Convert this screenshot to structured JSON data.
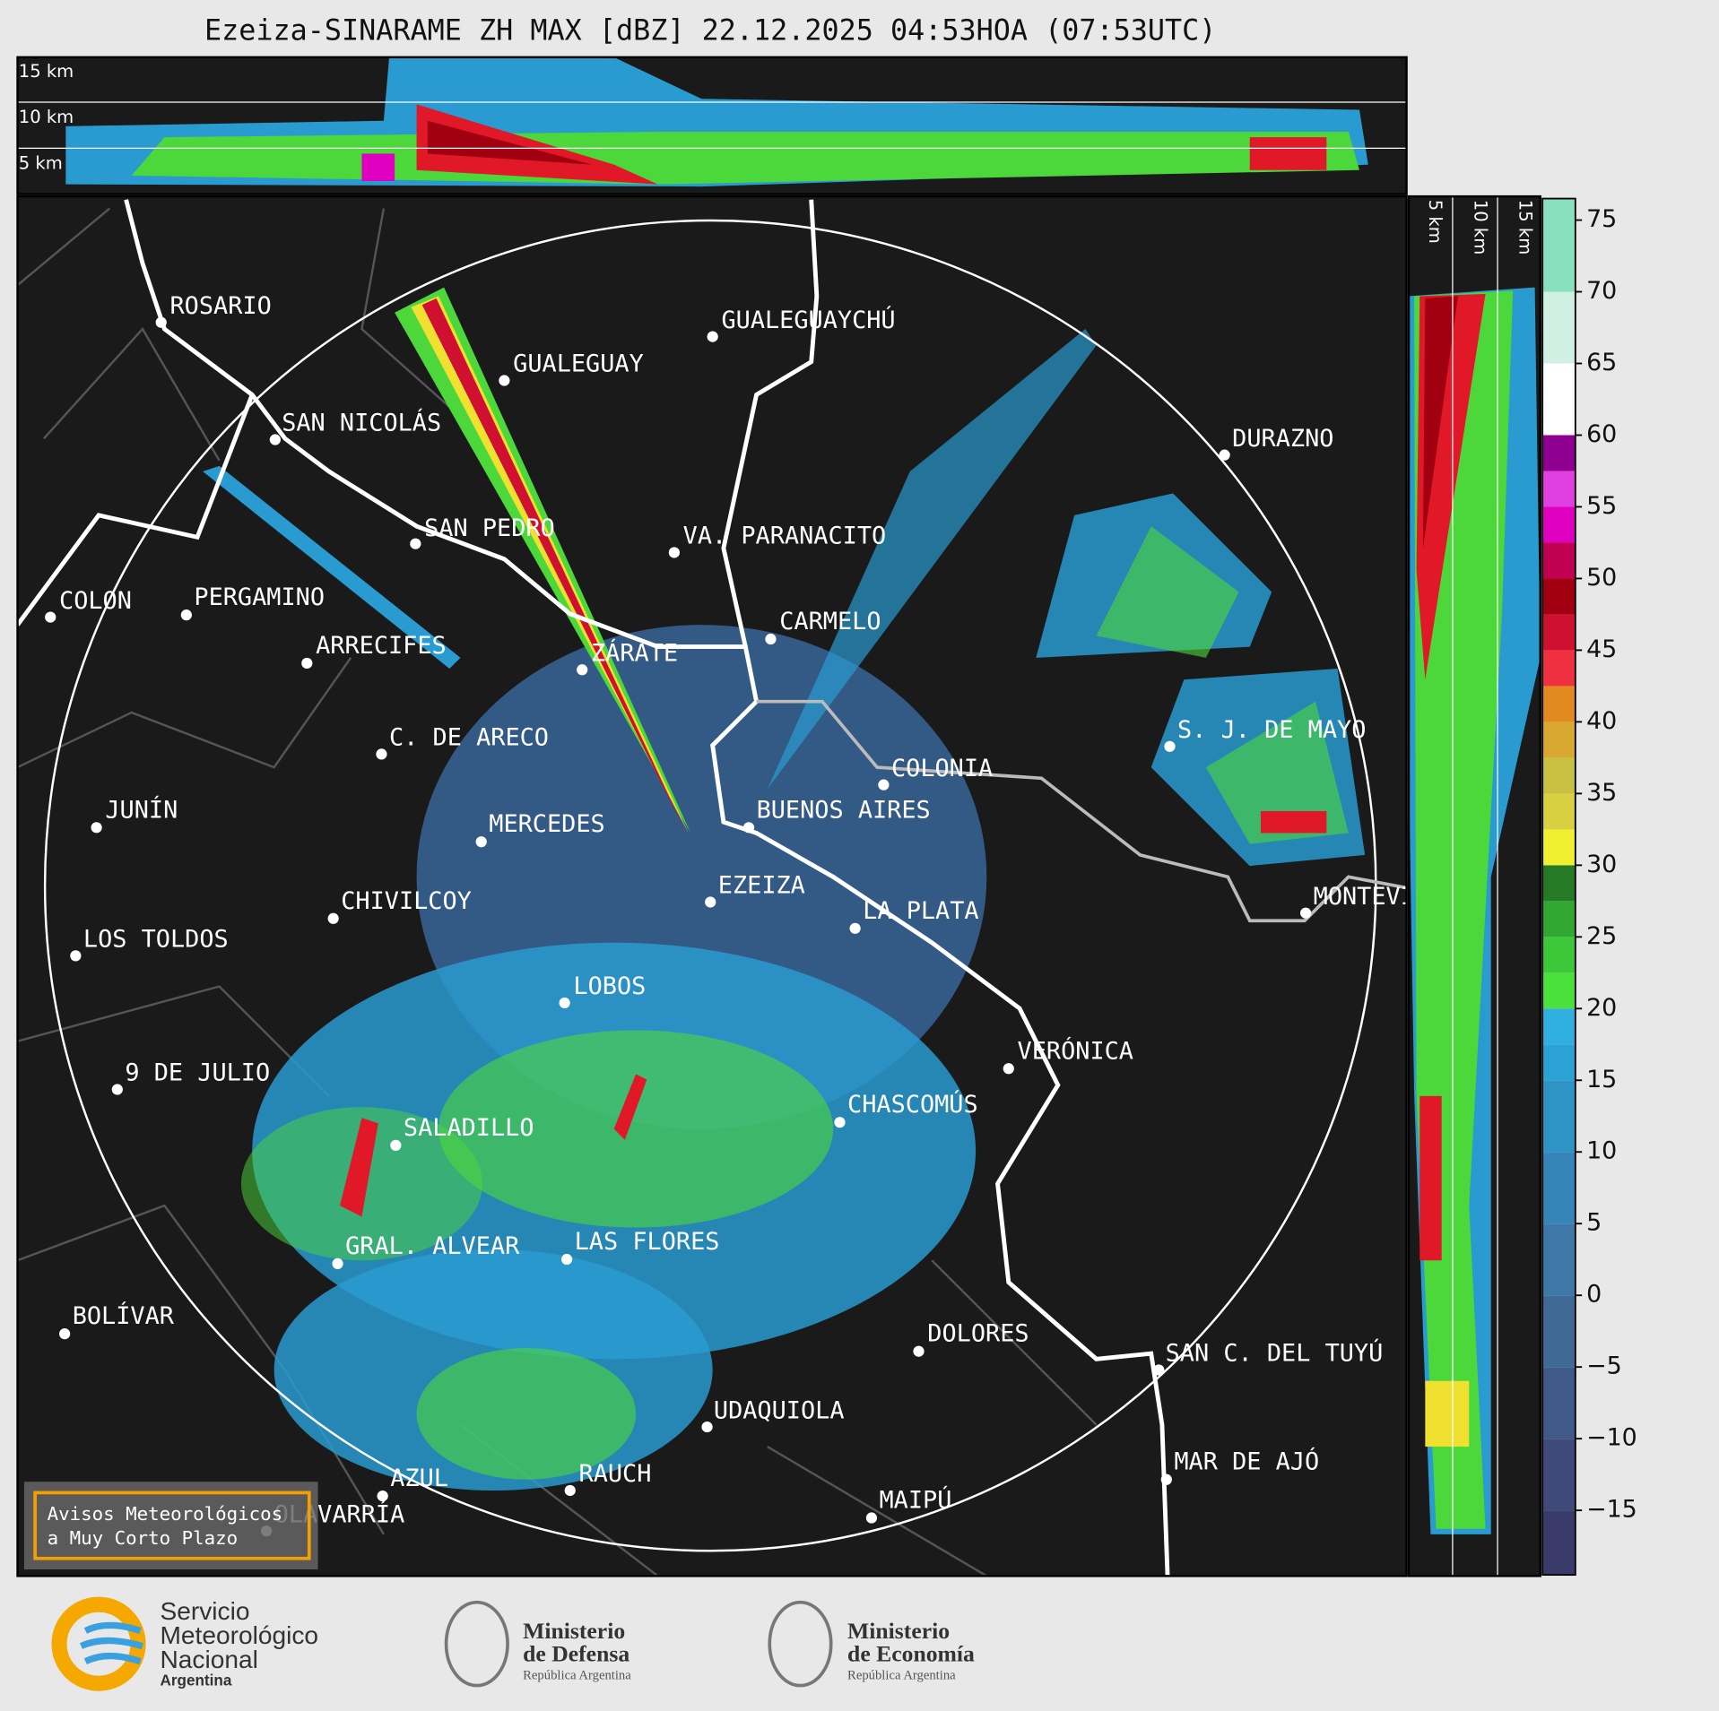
{
  "header": {
    "title": "Ezeiza-SINARAME ZH MAX [dBZ] 22.12.2025 04:53HOA (07:53UTC)"
  },
  "top_panel": {
    "height_labels": [
      "15 km",
      "10 km",
      "5 km"
    ]
  },
  "side_panel": {
    "height_labels": [
      "5 km",
      "10 km",
      "15 km"
    ]
  },
  "cities": [
    "ROSARIO",
    "GUALEGUAYCHÚ",
    "GUALEGUAY",
    "SAN NICOLÁS",
    "DURAZNO",
    "SAN PEDRO",
    "VA. PARANACITO",
    "COLON",
    "PERGAMINO",
    "CARMELO",
    "ARRECIFES",
    "ZÁRATE",
    "S. J. DE MAYO",
    "C. DE ARECO",
    "COLONIA",
    "BUENOS AIRES",
    "JUNÍN",
    "MERCEDES",
    "MONTEVIDEO",
    "EZEIZA",
    "CHIVILCOY",
    "LA PLATA",
    "LOS TOLDOS",
    "LOBOS",
    "VERÓNICA",
    "9 DE JULIO",
    "CHASCOMÚS",
    "SALADILLO",
    "GRAL. ALVEAR",
    "LAS FLORES",
    "BOLÍVAR",
    "DOLORES",
    "SAN C. DEL TUYÚ",
    "UDAQUIOLA",
    "MAR DE AJÓ",
    "AZUL",
    "RAUCH",
    "MAIPÚ",
    "OLAVARRÍA"
  ],
  "warning_box": [
    "Avisos Meteorológicos",
    "a Muy Corto Plazo"
  ],
  "colorbar": {
    "lim": [
      -19.5,
      76.5
    ],
    "bounds": [
      -19.5,
      -15,
      -10,
      -5,
      0,
      5,
      10,
      15,
      17.5,
      20,
      22.5,
      25,
      27.5,
      30,
      32.5,
      35,
      37.5,
      40,
      42.5,
      45,
      47.5,
      50,
      52.5,
      55,
      57.5,
      60,
      65,
      70,
      76.5
    ],
    "colors": [
      "#3b3b6b",
      "#3e4a7a",
      "#3f5a88",
      "#3f6a96",
      "#3d78a8",
      "#3585b8",
      "#2e94c6",
      "#2aa2d4",
      "#30b0e0",
      "#4ce03c",
      "#3cc838",
      "#30a832",
      "#267a26",
      "#f0f030",
      "#d8d040",
      "#c8c040",
      "#d8a830",
      "#e08a20",
      "#f03040",
      "#d01030",
      "#a00010",
      "#c00050",
      "#e000c0",
      "#e040e0",
      "#900090",
      "#ffffff",
      "#d0f0e4",
      "#88e0c0"
    ],
    "ticks": [
      75,
      70,
      65,
      60,
      55,
      50,
      45,
      40,
      35,
      30,
      25,
      20,
      15,
      10,
      5,
      0,
      {
        "value": -5,
        "label": "−5"
      },
      {
        "value": -10,
        "label": "−10"
      },
      {
        "value": -15,
        "label": "−15"
      }
    ]
  },
  "logos": {
    "smn": [
      "Servicio",
      "Meteorológico",
      "Nacional",
      "Argentina"
    ],
    "defensa": [
      "Ministerio",
      "de Defensa",
      "República Argentina"
    ],
    "economia": [
      "Ministerio",
      "de Economía",
      "República Argentina"
    ]
  }
}
